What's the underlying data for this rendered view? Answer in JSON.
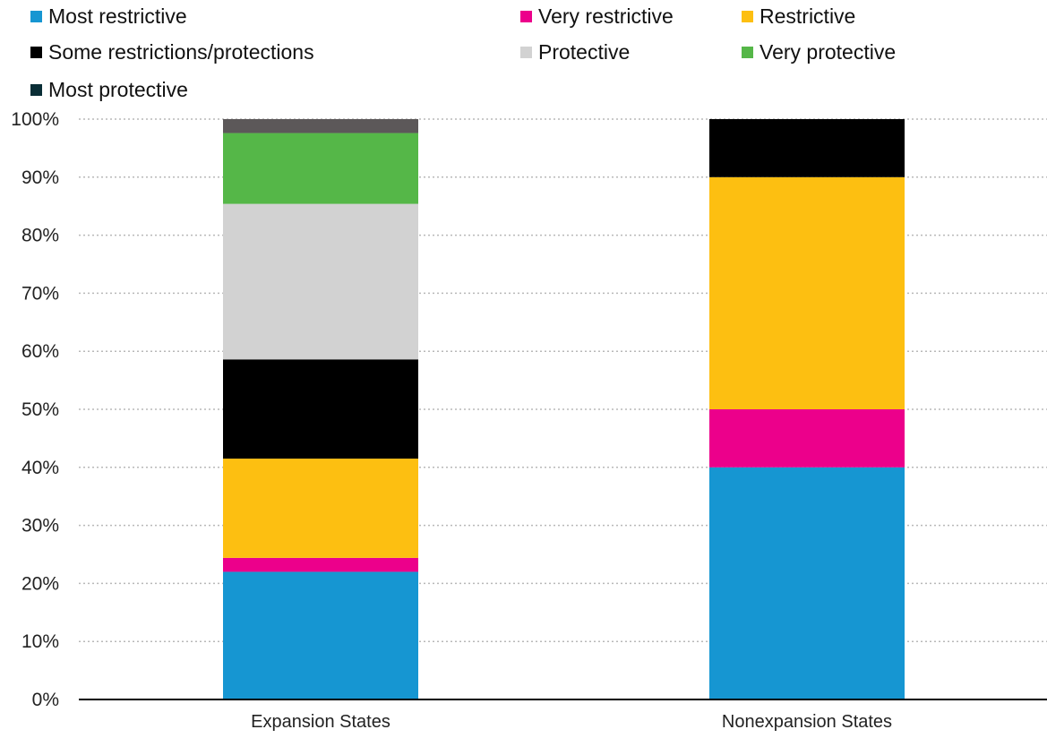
{
  "chart_data": {
    "type": "bar",
    "stacked": true,
    "categories": [
      "Expansion States",
      "Nonexpansion States"
    ],
    "series": [
      {
        "name": "Most restrictive",
        "color": "#1696D2",
        "values": [
          22.0,
          40.0
        ]
      },
      {
        "name": "Very restrictive",
        "color": "#EC008B",
        "values": [
          2.4,
          10.0
        ]
      },
      {
        "name": "Restrictive",
        "color": "#FDBF11",
        "values": [
          17.1,
          40.0
        ]
      },
      {
        "name": "Some restrictions/protections",
        "color": "#000000",
        "values": [
          17.1,
          10.0
        ]
      },
      {
        "name": "Protective",
        "color": "#D2D2D2",
        "values": [
          26.8,
          0
        ]
      },
      {
        "name": "Very protective",
        "color": "#55B748",
        "values": [
          12.2,
          0
        ]
      },
      {
        "name": "Most protective",
        "color": "#5C5859",
        "legend_color": "#0A2E36",
        "values": [
          2.4,
          0
        ]
      }
    ],
    "ylim": [
      0,
      100
    ],
    "y_ticks": [
      "0%",
      "10%",
      "20%",
      "30%",
      "40%",
      "50%",
      "60%",
      "70%",
      "80%",
      "90%",
      "100%"
    ],
    "grid": true,
    "legend_position": "top"
  }
}
